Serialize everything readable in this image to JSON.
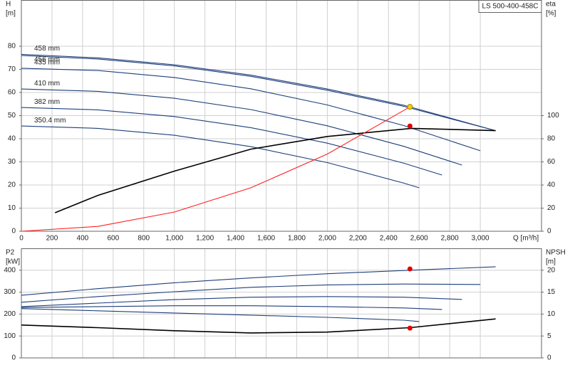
{
  "chart_data": [
    {
      "type": "line",
      "title": "LS 500-400-458C",
      "xlabel": "Q [m³/h]",
      "ylabel": "H",
      "yunit": "[m]",
      "y2label": "eta",
      "y2unit": "[%]",
      "xlim": [
        0,
        3400
      ],
      "xticks": [
        0,
        200,
        400,
        600,
        800,
        {
          "value": 1000,
          "label": "1,000"
        },
        {
          "value": 1200,
          "label": "1,200"
        },
        {
          "value": 1400,
          "label": "1,400"
        },
        {
          "value": 1600,
          "label": "1,600"
        },
        {
          "value": 1800,
          "label": "1,800"
        },
        {
          "value": 2000,
          "label": "2,000"
        },
        {
          "value": 2200,
          "label": "2,200"
        },
        {
          "value": 2400,
          "label": "2,400"
        },
        {
          "value": 2600,
          "label": "2,600"
        },
        {
          "value": 2800,
          "label": "2,800"
        },
        {
          "value": 3000,
          "label": "3,000"
        }
      ],
      "ylim": [
        0,
        100
      ],
      "yticks": [
        0,
        10,
        20,
        30,
        40,
        50,
        60,
        70,
        80
      ],
      "y2lim": [
        0,
        200
      ],
      "y2ticks": [
        0,
        20,
        40,
        60,
        80,
        100
      ],
      "grid": true,
      "series": [
        {
          "name": "458 mm",
          "color": "#1f3f7a",
          "x": [
            0,
            500,
            1000,
            1500,
            2000,
            2500,
            3100
          ],
          "values": [
            76.5,
            75,
            72,
            67.5,
            61.5,
            54.5,
            43.5
          ]
        },
        {
          "name": "456 mm",
          "color": "#1f3f7a",
          "x": [
            0,
            500,
            1000,
            1500,
            2000,
            2500,
            3100
          ],
          "values": [
            76,
            74.5,
            71.5,
            67,
            61,
            54,
            43.5
          ]
        },
        {
          "name": "435 mm",
          "color": "#1f3f7a",
          "x": [
            0,
            500,
            1000,
            1500,
            2000,
            2500,
            3000
          ],
          "values": [
            70.5,
            69.5,
            66.5,
            61.6,
            54.6,
            45.7,
            34.8
          ]
        },
        {
          "name": "410 mm",
          "color": "#1f3f7a",
          "x": [
            0,
            500,
            1000,
            1500,
            2000,
            2500,
            2880
          ],
          "values": [
            61.5,
            60.5,
            57.5,
            52.6,
            45.6,
            36.7,
            28.6
          ]
        },
        {
          "name": "382 mm",
          "color": "#1f3f7a",
          "x": [
            0,
            500,
            1000,
            1500,
            2000,
            2500,
            2750
          ],
          "values": [
            53.5,
            52.5,
            49.6,
            44.8,
            38.1,
            29.4,
            24.3
          ]
        },
        {
          "name": "350.4 mm",
          "color": "#1f3f7a",
          "x": [
            0,
            500,
            1000,
            1500,
            2000,
            2500,
            2600
          ],
          "values": [
            45.5,
            44.5,
            41.5,
            36.6,
            29.7,
            20.8,
            18.8
          ]
        },
        {
          "color": "#000000",
          "axis": "y2",
          "x": [
            220,
            500,
            1000,
            1500,
            2000,
            2550,
            3100
          ],
          "values": [
            16,
            31,
            52,
            71,
            82,
            89,
            87
          ]
        },
        {
          "color": "#ff2020",
          "x": [
            0,
            500,
            1000,
            1500,
            2000,
            2540
          ],
          "values": [
            0,
            2.1,
            8.3,
            18.8,
            33.4,
            53.8
          ]
        }
      ],
      "points": [
        {
          "x": 2540,
          "y": 53.8,
          "color": "#f5d000"
        },
        {
          "x": 2540,
          "y": 91,
          "axis": "y2",
          "color": "#e00000"
        }
      ]
    },
    {
      "type": "line",
      "ylabel": "P2",
      "yunit": "[kW]",
      "y2label": "NPSH",
      "y2unit": "[m]",
      "xlim": [
        0,
        3400
      ],
      "ylim": [
        0,
        500
      ],
      "yticks": [
        0,
        100,
        200,
        300,
        400
      ],
      "y2lim": [
        0,
        25
      ],
      "y2ticks": [
        0,
        5,
        10,
        15,
        20
      ],
      "grid": true,
      "series": [
        {
          "color": "#1f3f7a",
          "x": [
            0,
            500,
            1000,
            1500,
            2000,
            2540,
            3100
          ],
          "values": [
            286,
            316,
            343,
            365,
            384,
            400,
            416
          ]
        },
        {
          "color": "#1f3f7a",
          "x": [
            0,
            500,
            1000,
            1500,
            2000,
            2500,
            3000
          ],
          "values": [
            254,
            280,
            302,
            322,
            333,
            337,
            335
          ]
        },
        {
          "color": "#1f3f7a",
          "x": [
            0,
            500,
            1000,
            1500,
            2000,
            2500,
            2880
          ],
          "values": [
            234,
            250,
            266,
            277,
            280,
            277,
            267
          ]
        },
        {
          "color": "#1f3f7a",
          "x": [
            0,
            500,
            1000,
            1500,
            2000,
            2500,
            2750
          ],
          "values": [
            230,
            234,
            238,
            238,
            234,
            228,
            221
          ]
        },
        {
          "color": "#1f3f7a",
          "x": [
            0,
            500,
            1000,
            1500,
            2000,
            2500,
            2600
          ],
          "values": [
            225,
            215,
            205,
            195,
            185,
            172,
            166
          ]
        },
        {
          "color": "#000000",
          "axis": "y2",
          "x": [
            0,
            500,
            1000,
            1500,
            2000,
            2540,
            3100
          ],
          "values": [
            7.5,
            6.9,
            6.2,
            5.7,
            5.9,
            6.9,
            8.9
          ]
        }
      ],
      "points": [
        {
          "x": 2540,
          "y": 406,
          "color": "#e00000"
        },
        {
          "x": 2540,
          "y": 6.8,
          "axis": "y2",
          "color": "#e00000"
        }
      ]
    }
  ]
}
